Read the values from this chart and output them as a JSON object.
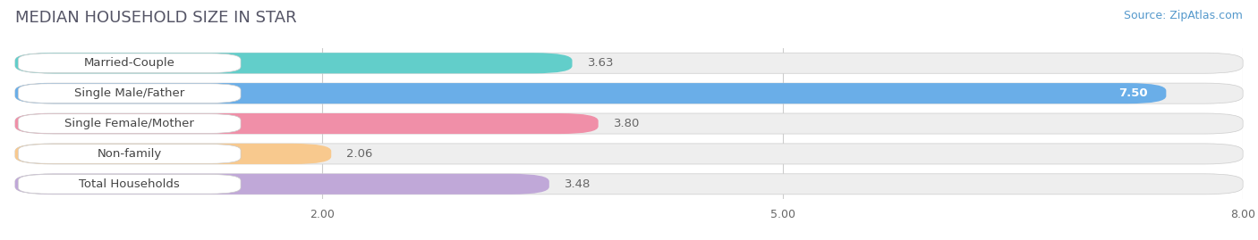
{
  "title": "MEDIAN HOUSEHOLD SIZE IN STAR",
  "source": "Source: ZipAtlas.com",
  "categories": [
    "Married-Couple",
    "Single Male/Father",
    "Single Female/Mother",
    "Non-family",
    "Total Households"
  ],
  "values": [
    3.63,
    7.5,
    3.8,
    2.06,
    3.48
  ],
  "bar_colors": [
    "#62ceca",
    "#6aaee8",
    "#f08fa8",
    "#f8c98e",
    "#c0a8d8"
  ],
  "xmin": 0,
  "xmax": 8.0,
  "xticks": [
    2.0,
    5.0,
    8.0
  ],
  "background_color": "#ffffff",
  "pill_bg_color": "#eeeeee",
  "title_fontsize": 13,
  "source_fontsize": 9,
  "label_fontsize": 9.5,
  "value_fontsize": 9.5
}
